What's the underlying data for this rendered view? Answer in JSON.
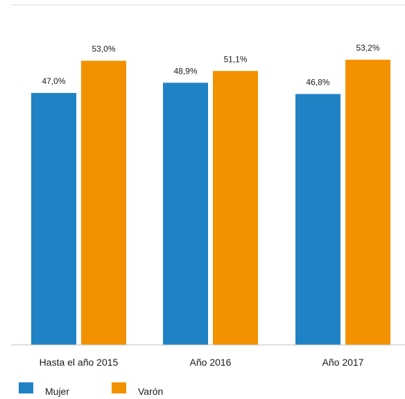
{
  "chart_data": {
    "type": "bar",
    "categories": [
      "Hasta el año 2015",
      "Año 2016",
      "Año 2017"
    ],
    "series": [
      {
        "name": "Mujer",
        "color": "#1f82c4",
        "values": [
          47.0,
          48.9,
          46.8
        ],
        "labels": [
          "47,0%",
          "48,9%",
          "46,8%"
        ]
      },
      {
        "name": "Varón",
        "color": "#f39200",
        "values": [
          53.0,
          51.1,
          53.2
        ],
        "labels": [
          "53,0%",
          "51,1%",
          "53,2%"
        ]
      }
    ],
    "ylim": [
      0,
      54.5
    ],
    "grid": false,
    "legend_position": "bottom-left",
    "colors": {
      "top_rule": "#d9d9d9",
      "baseline": "#bfbfbf",
      "text": "#1a1a1a"
    }
  }
}
